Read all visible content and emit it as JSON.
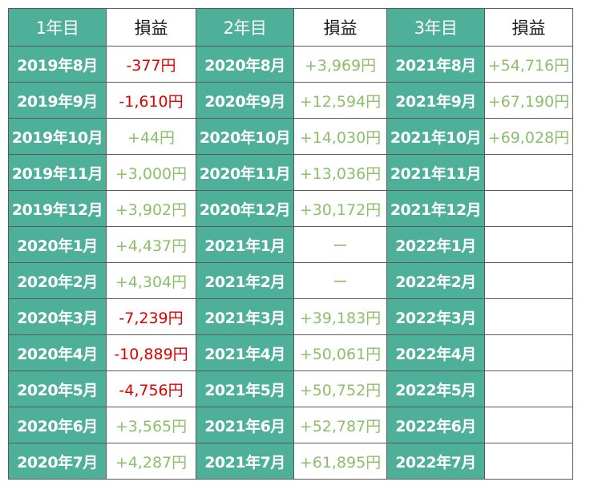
{
  "colors": {
    "header_bg": "#4fb09a",
    "positive": "#8bbf6a",
    "negative": "#e00000",
    "grid": "#5a5a5a"
  },
  "headers": [
    "1年目",
    "損益",
    "2年目",
    "損益",
    "3年目",
    "損益"
  ],
  "rows": [
    [
      "2019年8月",
      "-377円",
      "2020年8月",
      "+3,969円",
      "2021年8月",
      "+54,716円"
    ],
    [
      "2019年9月",
      "-1,610円",
      "2020年9月",
      "+12,594円",
      "2021年9月",
      "+67,190円"
    ],
    [
      "2019年10月",
      "+44円",
      "2020年10月",
      "+14,030円",
      "2021年10月",
      "+69,028円"
    ],
    [
      "2019年11月",
      "+3,000円",
      "2020年11月",
      "+13,036円",
      "2021年11月",
      ""
    ],
    [
      "2019年12月",
      "+3,902円",
      "2020年12月",
      "+30,172円",
      "2021年12月",
      ""
    ],
    [
      "2020年1月",
      "+4,437円",
      "2021年1月",
      "ー",
      "2022年1月",
      ""
    ],
    [
      "2020年2月",
      "+4,304円",
      "2021年2月",
      "ー",
      "2022年2月",
      ""
    ],
    [
      "2020年3月",
      "-7,239円",
      "2021年3月",
      "+39,183円",
      "2022年3月",
      ""
    ],
    [
      "2020年4月",
      "-10,889円",
      "2021年4月",
      "+50,061円",
      "2022年4月",
      ""
    ],
    [
      "2020年5月",
      "-4,756円",
      "2021年5月",
      "+50,752円",
      "2022年5月",
      ""
    ],
    [
      "2020年6月",
      "+3,565円",
      "2021年6月",
      "+52,787円",
      "2022年6月",
      ""
    ],
    [
      "2020年7月",
      "+4,287円",
      "2021年7月",
      "+61,895円",
      "2022年7月",
      ""
    ]
  ]
}
